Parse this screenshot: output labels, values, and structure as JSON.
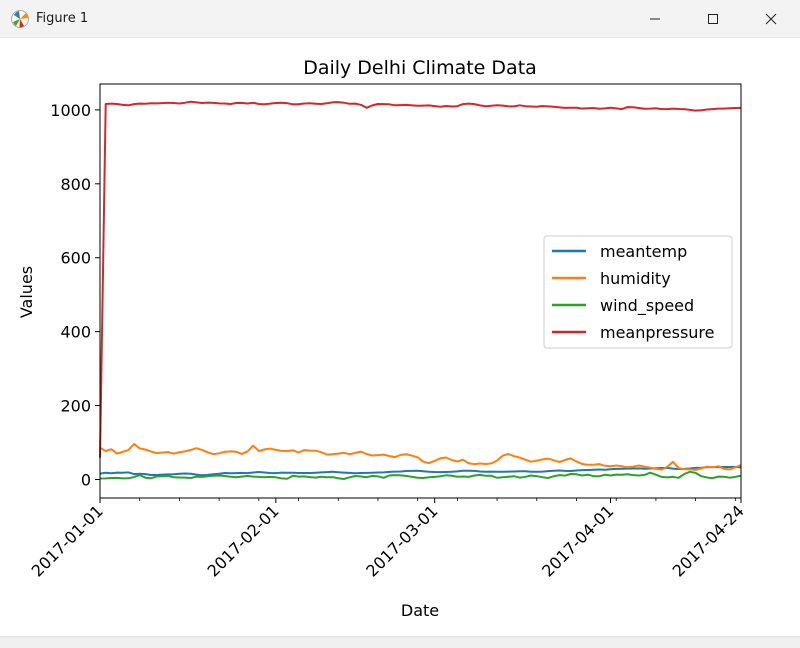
{
  "window": {
    "title": "Figure 1",
    "icons": {
      "app": "matplotlib-icon",
      "minimize": "minimize-icon",
      "maximize": "maximize-icon",
      "close": "close-icon"
    }
  },
  "chart_data": {
    "type": "line",
    "title": "Daily Delhi Climate Data",
    "xlabel": "Date",
    "ylabel": "Values",
    "x_start": "2017-01-01",
    "x_end": "2017-04-24",
    "xlim": [
      "2017-01-01",
      "2017-04-24"
    ],
    "ylim": [
      -50,
      1070
    ],
    "x_ticks": [
      "2017-01-01",
      "2017-02-01",
      "2017-03-01",
      "2017-04-01",
      "2017-04-24"
    ],
    "y_ticks": [
      0,
      200,
      400,
      600,
      800,
      1000
    ],
    "grid": false,
    "legend_position": "center-right",
    "series": [
      {
        "name": "meantemp",
        "color": "#1f77b4",
        "values": [
          15.9,
          18.5,
          17.1,
          18.7,
          18.4,
          19.3,
          14.7,
          15.7,
          14.6,
          12.1,
          12.1,
          13.4,
          13.8,
          14.0,
          15.7,
          16.3,
          15.6,
          13.2,
          11.3,
          12.4,
          14.5,
          15.8,
          17.6,
          16.8,
          17.3,
          17.9,
          17.4,
          19.0,
          20.3,
          19.0,
          17.5,
          17.4,
          18.6,
          18.1,
          18.1,
          17.5,
          17.5,
          17.6,
          18.4,
          19.3,
          20.1,
          20.9,
          19.7,
          18.6,
          17.8,
          17.0,
          17.5,
          17.8,
          18.5,
          19.0,
          19.3,
          20.5,
          21.4,
          21.6,
          23.0,
          23.3,
          23.6,
          22.5,
          21.2,
          20.3,
          20.0,
          20.3,
          20.9,
          21.9,
          23.5,
          23.6,
          23.3,
          21.8,
          21.1,
          21.4,
          20.9,
          20.8,
          21.3,
          21.6,
          22.1,
          22.2,
          21.0,
          20.9,
          21.5,
          22.9,
          23.8,
          24.3,
          23.4,
          23.0,
          24.5,
          25.4,
          25.7,
          26.3,
          27.0,
          26.4,
          27.6,
          28.6,
          29.3,
          29.6,
          29.7,
          30.0,
          29.3,
          29.8,
          30.6,
          31.2,
          31.5,
          29.5,
          28.4,
          28.6,
          29.8,
          31.3,
          32.1,
          33.4,
          33.5,
          34.0,
          33.8,
          33.9,
          34.1,
          32.9
        ]
      },
      {
        "name": "humidity",
        "color": "#ff7f0e",
        "values": [
          85.9,
          77.2,
          81.9,
          70.1,
          74.9,
          79.7,
          95.8,
          84.5,
          81.0,
          75.7,
          71.4,
          73.1,
          74.3,
          70.0,
          74.0,
          76.0,
          80.0,
          84.8,
          80.2,
          73.5,
          68.6,
          71.0,
          74.9,
          76.0,
          75.3,
          69.3,
          76.1,
          91.7,
          77.2,
          81.5,
          83.6,
          80.0,
          77.5,
          76.8,
          79.0,
          73.0,
          79.5,
          78.1,
          78.0,
          74.0,
          67.3,
          68.6,
          70.2,
          72.4,
          68.5,
          71.9,
          75.6,
          69.0,
          64.9,
          66.0,
          67.4,
          63.5,
          60.7,
          66.6,
          68.5,
          64.8,
          59.9,
          47.8,
          44.5,
          50.3,
          57.4,
          59.6,
          52.7,
          48.7,
          53.5,
          44.0,
          41.8,
          43.3,
          42.0,
          43.5,
          51.4,
          64.6,
          68.9,
          63.0,
          59.3,
          53.5,
          48.3,
          51.0,
          54.3,
          56.5,
          52.0,
          47.5,
          53.0,
          57.0,
          48.6,
          42.1,
          40.0,
          39.8,
          41.6,
          37.0,
          36.0,
          38.0,
          36.1,
          33.0,
          35.0,
          37.8,
          34.6,
          31.9,
          29.0,
          26.8,
          34.2,
          48.0,
          31.0,
          28.0,
          27.5,
          26.0,
          30.0,
          35.0,
          33.0,
          36.0,
          29.0,
          27.0,
          33.0,
          39.0
        ]
      },
      {
        "name": "wind_speed",
        "color": "#2ca02c",
        "values": [
          2.7,
          2.9,
          4.0,
          4.5,
          3.1,
          3.7,
          6.5,
          12.0,
          4.9,
          3.7,
          8.5,
          8.6,
          9.8,
          6.0,
          5.5,
          5.3,
          4.0,
          8.0,
          7.0,
          9.0,
          10.0,
          10.9,
          9.4,
          7.4,
          6.1,
          8.0,
          9.8,
          8.0,
          7.0,
          5.9,
          7.0,
          6.0,
          3.1,
          2.1,
          10.2,
          8.0,
          8.5,
          6.6,
          5.1,
          7.4,
          6.0,
          6.6,
          3.5,
          1.5,
          6.0,
          9.5,
          8.1,
          6.2,
          9.8,
          8.5,
          4.6,
          11.0,
          11.9,
          11.1,
          9.7,
          7.0,
          5.0,
          4.2,
          5.9,
          7.0,
          8.8,
          11.4,
          10.0,
          7.7,
          8.2,
          7.1,
          10.8,
          12.5,
          10.0,
          10.1,
          4.7,
          6.1,
          7.4,
          9.0,
          5.0,
          7.4,
          11.0,
          8.9,
          6.3,
          4.2,
          9.0,
          12.0,
          10.5,
          14.8,
          14.1,
          11.0,
          13.0,
          9.0,
          8.6,
          13.1,
          11.0,
          13.3,
          12.8,
          14.3,
          12.0,
          10.8,
          12.4,
          18.5,
          13.0,
          7.0,
          5.8,
          7.4,
          4.6,
          14.8,
          21.0,
          18.0,
          9.0,
          5.4,
          3.7,
          8.0,
          7.5,
          5.0,
          7.0,
          10.4
        ]
      },
      {
        "name": "meanpressure",
        "color": "#d62728",
        "values": [
          59,
          1016.0,
          1017.0,
          1016.0,
          1013.5,
          1012.4,
          1015.6,
          1017.0,
          1016.5,
          1018.0,
          1017.6,
          1018.4,
          1019.4,
          1018.5,
          1017.2,
          1019.4,
          1022.0,
          1020.3,
          1018.5,
          1019.6,
          1018.8,
          1017.5,
          1017.3,
          1016.0,
          1018.5,
          1019.0,
          1017.3,
          1019.1,
          1016.0,
          1015.4,
          1016.9,
          1018.7,
          1019.1,
          1018.0,
          1015.0,
          1015.2,
          1017.3,
          1017.8,
          1016.7,
          1016.0,
          1017.8,
          1020.5,
          1021.0,
          1019.4,
          1016.4,
          1016.9,
          1013.6,
          1005.5,
          1012.0,
          1016.0,
          1015.6,
          1015.0,
          1012.5,
          1013.0,
          1013.5,
          1012.0,
          1011.0,
          1011.6,
          1012.0,
          1010.3,
          1008.5,
          1010.5,
          1009.0,
          1010.0,
          1015.7,
          1017.0,
          1015.5,
          1012.0,
          1010.0,
          1011.0,
          1012.7,
          1011.5,
          1010.0,
          1009.5,
          1012.5,
          1010.0,
          1009.0,
          1008.6,
          1010.4,
          1009.5,
          1008.4,
          1006.6,
          1005.4,
          1006.0,
          1005.5,
          1003.5,
          1004.5,
          1005.0,
          1003.0,
          1004.0,
          1006.0,
          1004.0,
          1002.0,
          1007.5,
          1007.0,
          1005.0,
          1003.2,
          1003.5,
          1004.3,
          1002.0,
          1002.1,
          1003.5,
          1002.5,
          1002.0,
          1000.0,
          998.0,
          999.0,
          1001.0,
          1002.0,
          1003.5,
          1003.5,
          1004.5,
          1005.0,
          1005.3
        ]
      }
    ]
  }
}
